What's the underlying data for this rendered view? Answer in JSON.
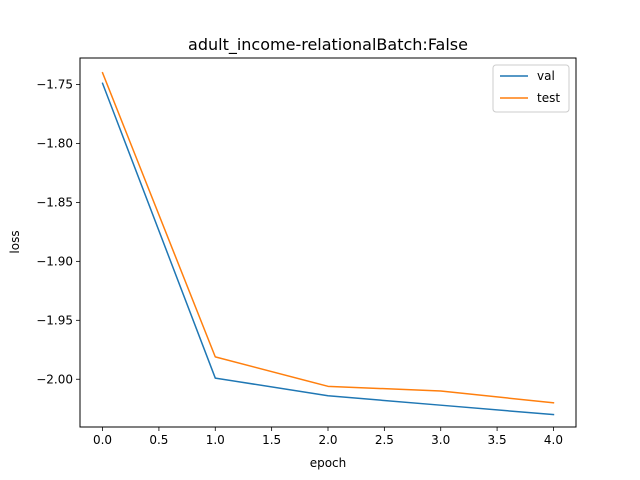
{
  "chart_data": {
    "type": "line",
    "title": "adult_income-relationalBatch:False",
    "xlabel": "epoch",
    "ylabel": "loss",
    "xlim": [
      -0.2,
      4.2
    ],
    "ylim": [
      -2.0405,
      -1.7275
    ],
    "x_ticks": [
      0.0,
      0.5,
      1.0,
      1.5,
      2.0,
      2.5,
      3.0,
      3.5,
      4.0
    ],
    "x_tick_labels": [
      "0.0",
      "0.5",
      "1.0",
      "1.5",
      "2.0",
      "2.5",
      "3.0",
      "3.5",
      "4.0"
    ],
    "y_ticks": [
      -1.75,
      -1.8,
      -1.85,
      -1.9,
      -1.95,
      -2.0
    ],
    "y_tick_labels": [
      "−1.75",
      "−1.80",
      "−1.85",
      "−1.90",
      "−1.95",
      "−2.00"
    ],
    "grid": false,
    "legend_position": "top-right",
    "series": [
      {
        "name": "val",
        "color": "#1f77b4",
        "x": [
          0,
          1,
          2,
          3,
          4
        ],
        "y": [
          -1.749,
          -1.999,
          -2.014,
          -2.022,
          -2.03
        ]
      },
      {
        "name": "test",
        "color": "#ff7f0e",
        "x": [
          0,
          1,
          2,
          3,
          4
        ],
        "y": [
          -1.74,
          -1.981,
          -2.006,
          -2.01,
          -2.02
        ]
      }
    ]
  }
}
